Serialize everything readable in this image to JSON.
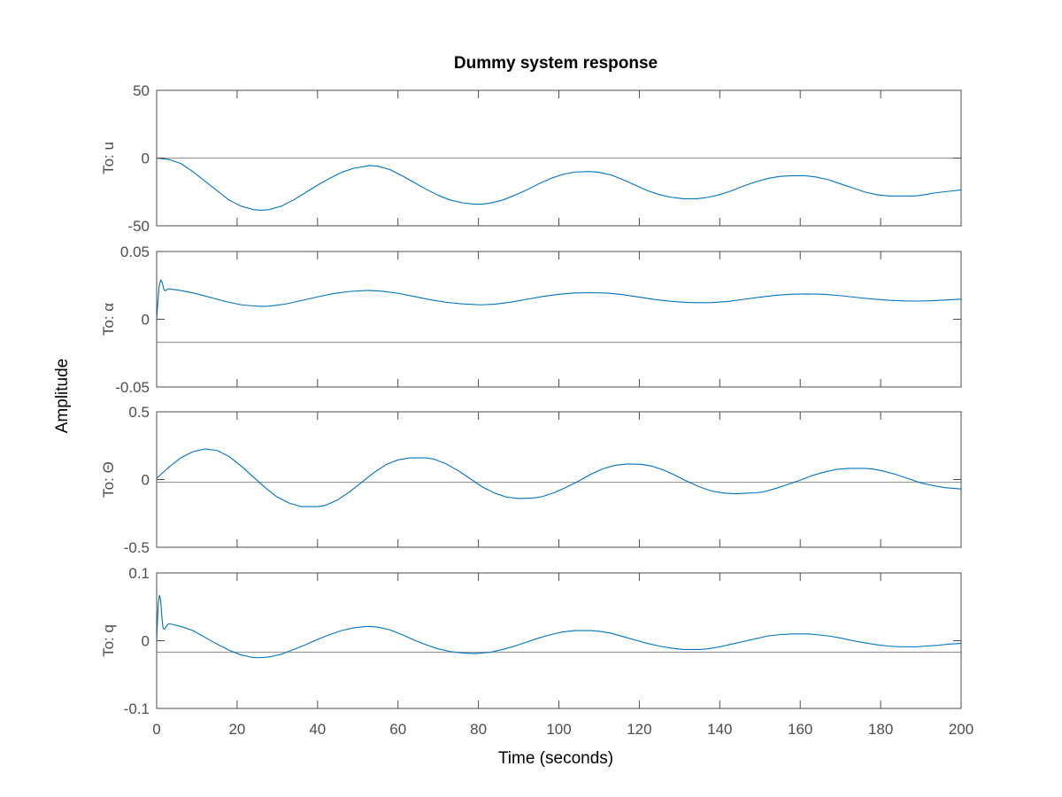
{
  "chart_data": {
    "type": "line",
    "title": "Dummy system response",
    "xlabel": "Time (seconds)",
    "ylabel": "Amplitude",
    "xlim": [
      0,
      200
    ],
    "xticks": [
      0,
      20,
      40,
      60,
      80,
      100,
      120,
      140,
      160,
      180,
      200
    ],
    "xtick_labels": [
      "0",
      "20",
      "40",
      "60",
      "80",
      "100",
      "120",
      "140",
      "160",
      "180",
      "200"
    ],
    "grid": false,
    "colors": {
      "series": "#0072BD",
      "reference": "#999999",
      "axis": "#4d4d4d"
    },
    "subplots": [
      {
        "ylabel": "To: u",
        "ylim": [
          -50,
          50
        ],
        "yticks": [
          -50,
          0,
          50
        ],
        "ytick_labels": [
          "-50",
          "0",
          "50"
        ],
        "reference": 0,
        "series": [
          {
            "x": [
              0,
              3,
              6,
              9,
              12,
              15,
              18,
              21,
              24,
              26,
              28,
              31,
              34,
              37,
              40,
              43,
              46,
              49,
              52,
              53,
              55,
              58,
              61,
              64,
              67,
              70,
              73,
              76,
              79,
              81,
              83,
              86,
              89,
              92,
              95,
              98,
              101,
              104,
              107,
              108,
              110,
              113,
              116,
              119,
              122,
              125,
              128,
              131,
              134,
              135,
              137,
              140,
              143,
              146,
              149,
              152,
              155,
              158,
              161,
              162,
              164,
              167,
              170,
              173,
              176,
              179,
              182,
              185,
              188,
              189,
              191,
              194,
              197,
              200
            ],
            "y": [
              0,
              -1,
              -4,
              -10,
              -17,
              -24,
              -31,
              -35.5,
              -38,
              -38.5,
              -38,
              -35.5,
              -31,
              -25.5,
              -20,
              -15,
              -10.5,
              -7.5,
              -6,
              -5.5,
              -6,
              -8.5,
              -13,
              -18,
              -23,
              -27.5,
              -31,
              -33,
              -34,
              -34,
              -33.2,
              -31,
              -27.5,
              -23.5,
              -19,
              -15,
              -12,
              -10.3,
              -10,
              -10,
              -10.5,
              -12.5,
              -16,
              -20,
              -24,
              -27,
              -29,
              -30,
              -30,
              -29.8,
              -29,
              -27,
              -24,
              -20.5,
              -17.5,
              -15,
              -13.5,
              -13,
              -13,
              -13.3,
              -14,
              -16,
              -19,
              -22,
              -25,
              -27,
              -28,
              -28,
              -28,
              -27.8,
              -27,
              -25.5,
              -24.5,
              -23.5
            ]
          }
        ]
      },
      {
        "ylabel": "To: α",
        "ylim": [
          -0.05,
          0.05
        ],
        "yticks": [
          -0.05,
          0,
          0.05
        ],
        "ytick_labels": [
          "-0.05",
          "0",
          "0.05"
        ],
        "reference": -0.017,
        "series": [
          {
            "x": [
              0,
              0.3,
              0.6,
              1,
              1.4,
              1.8,
              2.2,
              2.6,
              3,
              4,
              6,
              9,
              12,
              15,
              18,
              21,
              24,
              26,
              28,
              32,
              36,
              40,
              44,
              48,
              52,
              53,
              56,
              60,
              64,
              68,
              72,
              76,
              80,
              81,
              84,
              88,
              92,
              96,
              100,
              104,
              108,
              112,
              116,
              120,
              124,
              128,
              132,
              135,
              138,
              142,
              146,
              150,
              154,
              158,
              162,
              166,
              170,
              174,
              178,
              182,
              186,
              189,
              192,
              196,
              200
            ],
            "y": [
              0,
              0.012,
              0.024,
              0.029,
              0.027,
              0.022,
              0.021,
              0.022,
              0.0225,
              0.022,
              0.0212,
              0.0195,
              0.0172,
              0.0148,
              0.0125,
              0.0107,
              0.0098,
              0.0095,
              0.0097,
              0.0112,
              0.0138,
              0.0165,
              0.019,
              0.0205,
              0.0212,
              0.0212,
              0.0207,
              0.0192,
              0.0168,
              0.0144,
              0.0125,
              0.0113,
              0.0107,
              0.0107,
              0.0111,
              0.0126,
              0.0147,
              0.0168,
              0.0184,
              0.0194,
              0.0196,
              0.0193,
              0.0181,
              0.0163,
              0.0145,
              0.0132,
              0.0124,
              0.0122,
              0.0123,
              0.0131,
              0.0147,
              0.0163,
              0.0177,
              0.0185,
              0.0187,
              0.0184,
              0.0174,
              0.0161,
              0.0149,
              0.014,
              0.0135,
              0.0134,
              0.0136,
              0.0142,
              0.0148
            ]
          }
        ]
      },
      {
        "ylabel": "To: Θ",
        "ylim": [
          -0.5,
          0.5
        ],
        "yticks": [
          -0.5,
          0,
          0.5
        ],
        "ytick_labels": [
          "-0.5",
          "0",
          "0.5"
        ],
        "reference": -0.02,
        "series": [
          {
            "x": [
              0,
              3,
              6,
              9,
              12,
              15,
              18,
              21,
              24,
              27,
              30,
              33,
              36,
              39,
              40,
              42,
              45,
              48,
              51,
              54,
              57,
              60,
              63,
              66,
              67,
              69,
              72,
              75,
              78,
              81,
              84,
              87,
              90,
              93,
              94,
              96,
              99,
              102,
              105,
              108,
              111,
              114,
              117,
              120,
              121,
              123,
              126,
              129,
              132,
              135,
              138,
              141,
              144,
              147,
              149,
              151,
              154,
              157,
              160,
              163,
              166,
              169,
              172,
              175,
              176,
              178,
              181,
              184,
              187,
              190,
              193,
              196,
              200
            ],
            "y": [
              0.01,
              0.09,
              0.16,
              0.205,
              0.225,
              0.215,
              0.17,
              0.1,
              0.02,
              -0.06,
              -0.13,
              -0.175,
              -0.2,
              -0.2,
              -0.2,
              -0.19,
              -0.15,
              -0.09,
              -0.02,
              0.05,
              0.11,
              0.145,
              0.16,
              0.16,
              0.16,
              0.15,
              0.115,
              0.065,
              0.005,
              -0.055,
              -0.1,
              -0.13,
              -0.14,
              -0.138,
              -0.135,
              -0.125,
              -0.095,
              -0.055,
              -0.01,
              0.04,
              0.08,
              0.105,
              0.115,
              0.112,
              0.11,
              0.1,
              0.07,
              0.03,
              -0.015,
              -0.055,
              -0.085,
              -0.1,
              -0.105,
              -0.1,
              -0.098,
              -0.09,
              -0.065,
              -0.035,
              -0.005,
              0.03,
              0.055,
              0.075,
              0.082,
              0.082,
              0.082,
              0.078,
              0.06,
              0.035,
              0.005,
              -0.025,
              -0.045,
              -0.06,
              -0.07
            ]
          }
        ]
      },
      {
        "ylabel": "To: q",
        "ylim": [
          -0.1,
          0.1
        ],
        "yticks": [
          -0.1,
          0,
          0.1
        ],
        "ytick_labels": [
          "-0.1",
          "0",
          "0.1"
        ],
        "reference": -0.017,
        "series": [
          {
            "x": [
              0,
              0.2,
              0.4,
              0.7,
              1,
              1.3,
              1.6,
              2,
              2.5,
              3,
              4,
              6,
              9,
              12,
              15,
              18,
              21,
              24,
              26,
              28,
              31,
              34,
              37,
              40,
              43,
              46,
              49,
              52,
              53,
              55,
              58,
              61,
              64,
              67,
              70,
              73,
              76,
              79,
              81,
              83,
              86,
              89,
              92,
              95,
              98,
              101,
              104,
              107,
              108,
              110,
              113,
              116,
              119,
              122,
              125,
              128,
              131,
              134,
              135,
              137,
              140,
              143,
              146,
              149,
              152,
              155,
              158,
              161,
              162,
              164,
              167,
              170,
              173,
              176,
              179,
              182,
              185,
              188,
              189,
              191,
              194,
              197,
              200
            ],
            "y": [
              0,
              0.03,
              0.055,
              0.067,
              0.06,
              0.035,
              0.018,
              0.017,
              0.022,
              0.025,
              0.024,
              0.021,
              0.015,
              0.005,
              -0.005,
              -0.014,
              -0.021,
              -0.025,
              -0.025,
              -0.024,
              -0.02,
              -0.013,
              -0.006,
              0.002,
              0.009,
              0.015,
              0.019,
              0.021,
              0.021,
              0.02,
              0.016,
              0.009,
              0.001,
              -0.006,
              -0.012,
              -0.016,
              -0.018,
              -0.019,
              -0.018,
              -0.017,
              -0.013,
              -0.008,
              -0.002,
              0.004,
              0.009,
              0.013,
              0.015,
              0.015,
              0.015,
              0.014,
              0.011,
              0.006,
              0.001,
              -0.004,
              -0.008,
              -0.011,
              -0.013,
              -0.013,
              -0.013,
              -0.012,
              -0.009,
              -0.005,
              -0.001,
              0.003,
              0.007,
              0.009,
              0.01,
              0.01,
              0.01,
              0.009,
              0.007,
              0.004,
              0,
              -0.003,
              -0.006,
              -0.008,
              -0.009,
              -0.009,
              -0.009,
              -0.008,
              -0.007,
              -0.005,
              -0.004
            ]
          }
        ]
      }
    ]
  }
}
